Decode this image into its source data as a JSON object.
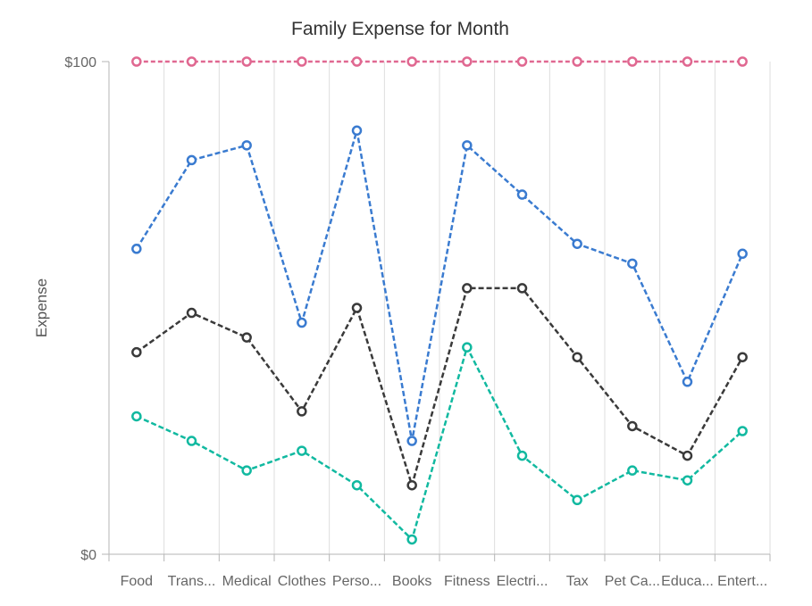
{
  "chart_data": {
    "type": "line",
    "title": "Family Expense for Month",
    "xlabel": "",
    "ylabel": "Expense",
    "categories": [
      "Food",
      "Trans...",
      "Medical",
      "Clothes",
      "Perso...",
      "Books",
      "Fitness",
      "Electri...",
      "Tax",
      "Pet Ca...",
      "Educa...",
      "Entert..."
    ],
    "ylim": [
      0,
      100
    ],
    "y_ticks": [
      {
        "value": 0,
        "label": "$0"
      },
      {
        "value": 100,
        "label": "$100"
      }
    ],
    "grid": {
      "vertical": true,
      "horizontal": false
    },
    "series": [
      {
        "color": "#11b9a0",
        "values": [
          28,
          23,
          17,
          21,
          14,
          3,
          42,
          20,
          11,
          17,
          15,
          25
        ]
      },
      {
        "color": "#3a3a3a",
        "values": [
          41,
          49,
          44,
          29,
          50,
          14,
          54,
          54,
          40,
          26,
          20,
          40
        ]
      },
      {
        "color": "#3a7bd0",
        "values": [
          62,
          80,
          83,
          47,
          86,
          23,
          83,
          73,
          63,
          59,
          35,
          61
        ]
      },
      {
        "color": "#e06891",
        "values": [
          100,
          100,
          100,
          100,
          100,
          100,
          100,
          100,
          100,
          100,
          100,
          100
        ]
      }
    ]
  }
}
